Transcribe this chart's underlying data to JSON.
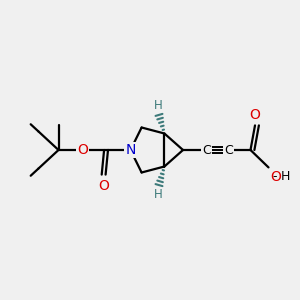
{
  "bg_color": "#f0f0f0",
  "bond_color": "#000000",
  "N_color": "#0000cc",
  "O_color": "#dd0000",
  "H_color": "#3d7a7a",
  "C_color": "#000000",
  "figsize": [
    3.0,
    3.0
  ],
  "dpi": 100,
  "xlim": [
    0,
    10
  ],
  "ylim": [
    0,
    10
  ],
  "lw": 1.6,
  "lw_triple": 1.4
}
